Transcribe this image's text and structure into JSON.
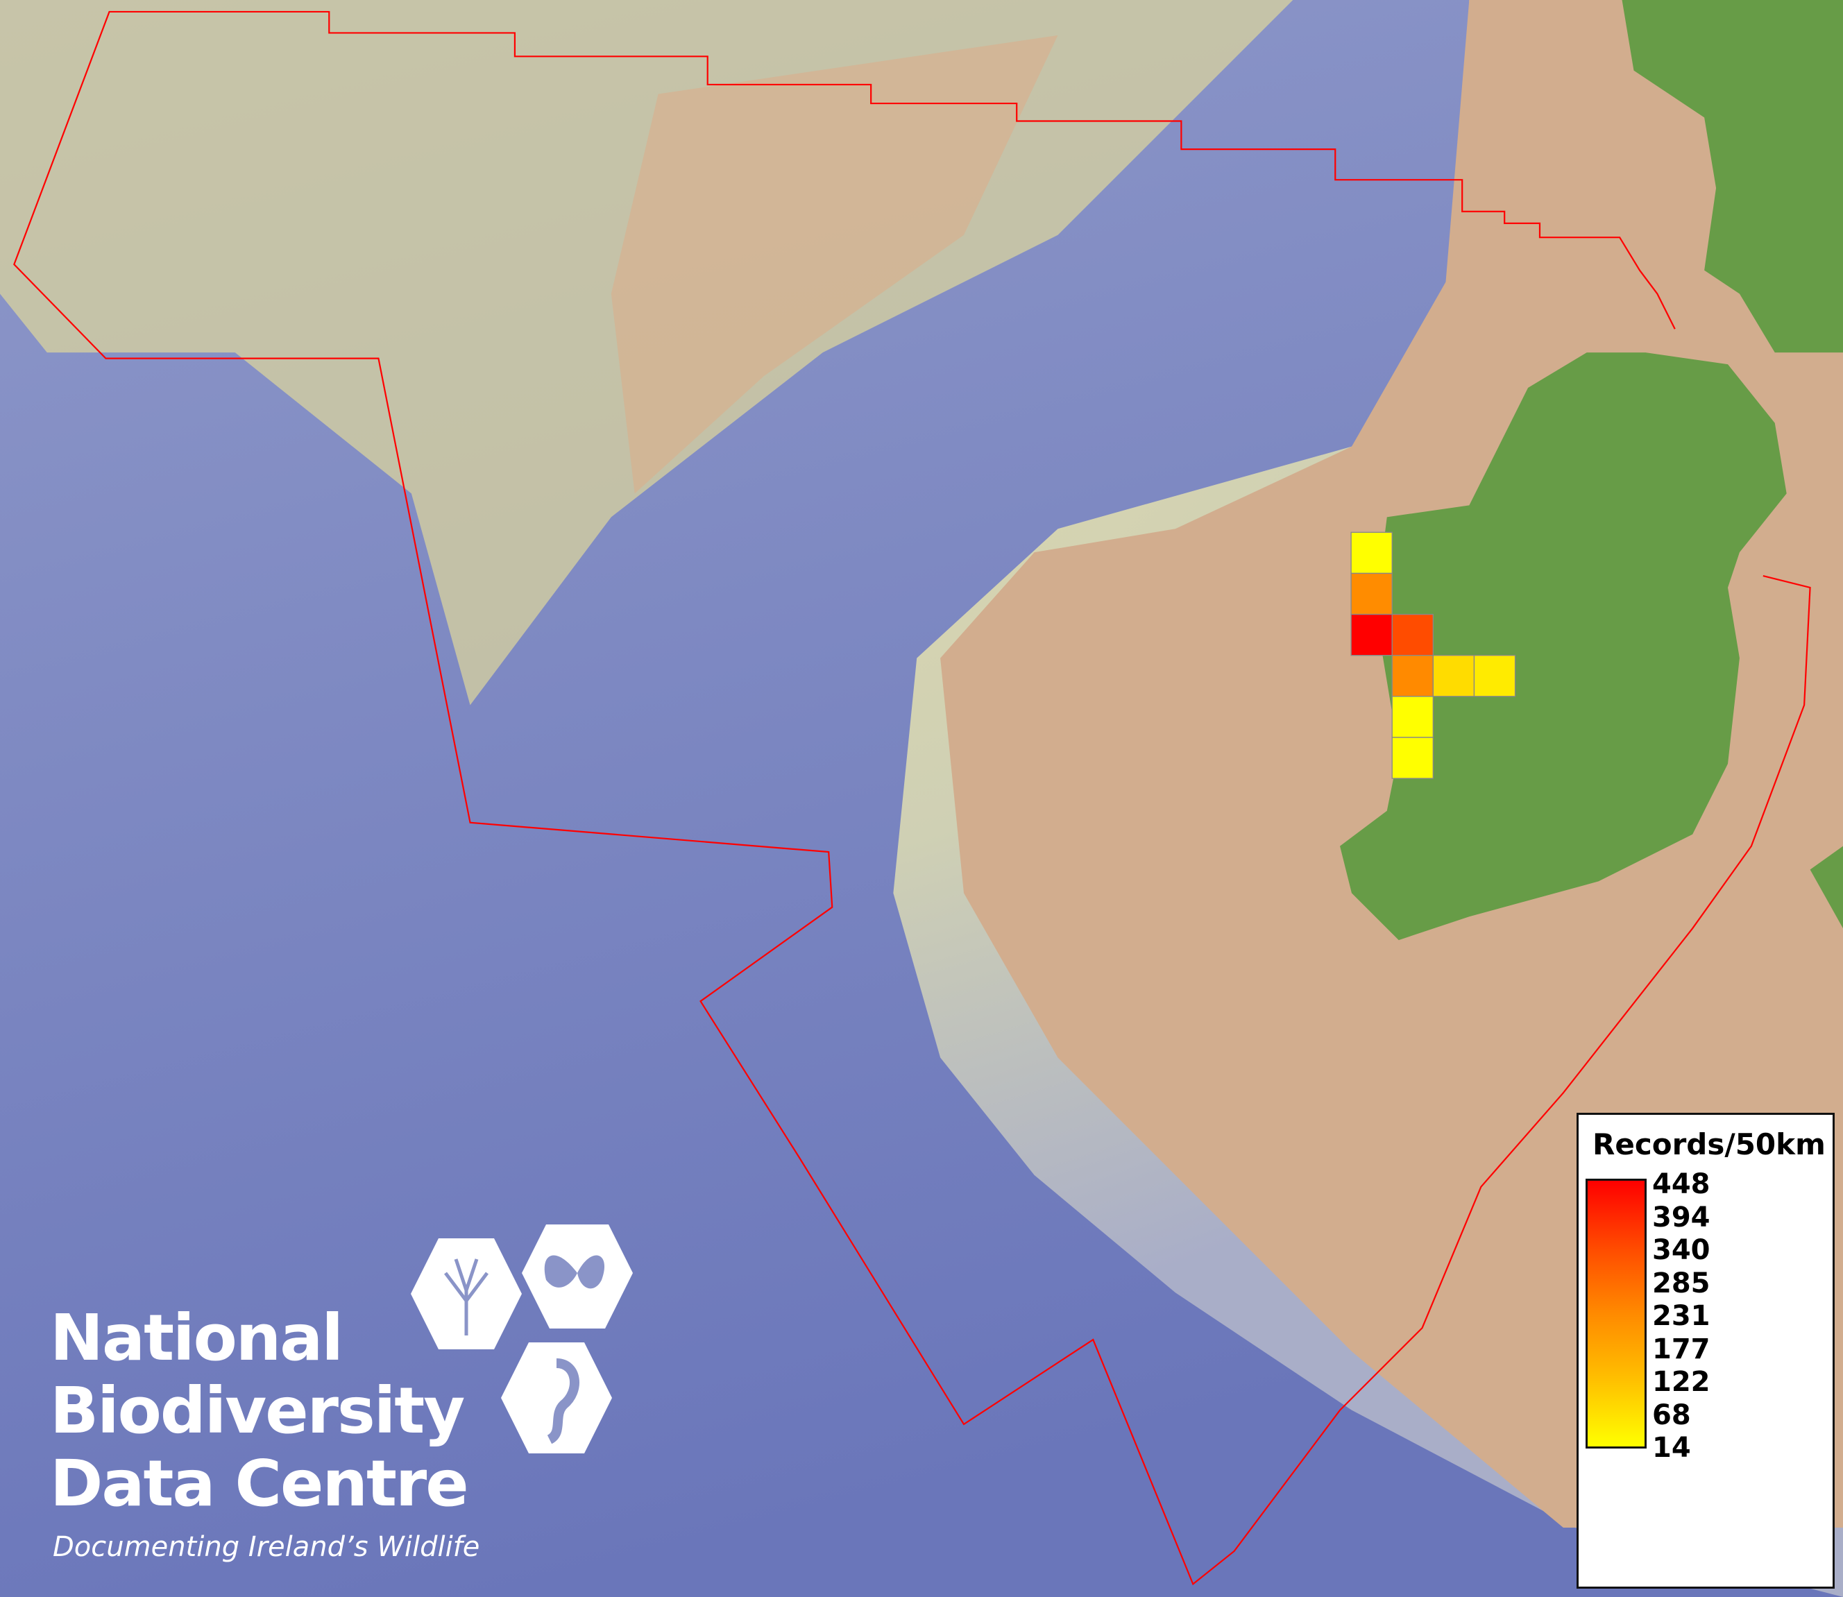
{
  "map": {
    "colors": {
      "deep_ocean": "#6f7bbd",
      "shelf": "#dcd9a4",
      "near_shore": "#d2ad8e",
      "land": "#679c47",
      "boundary": "#ff0000",
      "cell_border": "#888888"
    },
    "grid_cells": [
      {
        "col": 0,
        "row": 0,
        "records": 20,
        "color": "#ffff00"
      },
      {
        "col": 0,
        "row": 1,
        "records": 231,
        "color": "#ff8c00"
      },
      {
        "col": 0,
        "row": 2,
        "records": 448,
        "color": "#ff0000"
      },
      {
        "col": 1,
        "row": 2,
        "records": 340,
        "color": "#ff4c00"
      },
      {
        "col": 1,
        "row": 3,
        "records": 231,
        "color": "#ff8a00"
      },
      {
        "col": 2,
        "row": 3,
        "records": 80,
        "color": "#ffdc00"
      },
      {
        "col": 3,
        "row": 3,
        "records": 50,
        "color": "#ffeb00"
      },
      {
        "col": 1,
        "row": 4,
        "records": 14,
        "color": "#ffff00"
      },
      {
        "col": 1,
        "row": 5,
        "records": 14,
        "color": "#ffff00"
      }
    ]
  },
  "legend": {
    "title": "Records/50km",
    "ticks": [
      "448",
      "394",
      "340",
      "285",
      "231",
      "177",
      "122",
      "68",
      "14"
    ],
    "colors": {
      "max": "#ff0000",
      "min": "#ffff00"
    }
  },
  "logo": {
    "line1": "National",
    "line2": "Biodiversity",
    "line3": "Data Centre",
    "tagline": "Documenting Ireland’s Wildlife",
    "icons": [
      "tree-icon",
      "butterfly-icon",
      "seahorse-icon"
    ]
  }
}
